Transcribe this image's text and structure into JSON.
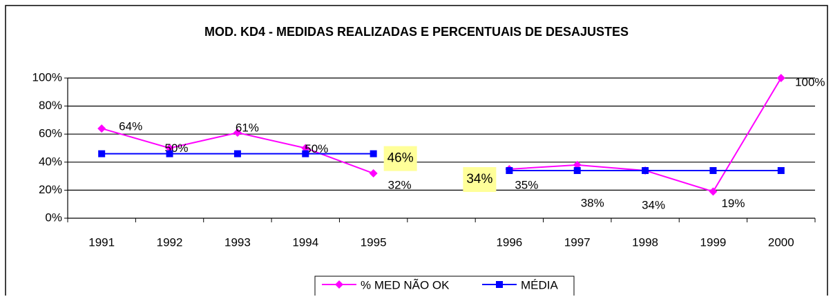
{
  "chart_data": {
    "type": "line",
    "title": "MOD. KD4 - MEDIDAS REALIZADAS E PERCENTUAIS DE DESAJUSTES",
    "categories": [
      "1991",
      "1992",
      "1993",
      "1994",
      "1995",
      null,
      "1996",
      "1997",
      "1998",
      "1999",
      "2000"
    ],
    "series": [
      {
        "name": "% MED NÃO OK",
        "color": "#ff00ff",
        "values": [
          64,
          50,
          61,
          50,
          32,
          null,
          35,
          38,
          34,
          19,
          100
        ],
        "value_labels": [
          "64%",
          "50%",
          "61%",
          "50%",
          "32%",
          null,
          "35%",
          "38%",
          "34%",
          "19%",
          "100%"
        ]
      },
      {
        "name": "MÉDIA",
        "color": "#0000ff",
        "values": [
          46,
          46,
          46,
          46,
          46,
          null,
          34,
          34,
          34,
          34,
          34
        ],
        "value_labels": [
          null,
          null,
          null,
          null,
          "46%",
          null,
          "34%",
          null,
          null,
          null,
          null
        ]
      }
    ],
    "ylim": [
      0,
      100
    ],
    "yticks": [
      {
        "value": 0,
        "label": "0%"
      },
      {
        "value": 20,
        "label": "20%"
      },
      {
        "value": 40,
        "label": "40%"
      },
      {
        "value": 60,
        "label": "60%"
      },
      {
        "value": 80,
        "label": "80%"
      },
      {
        "value": 100,
        "label": "100%"
      }
    ],
    "grid": true,
    "legend": "bottom"
  }
}
